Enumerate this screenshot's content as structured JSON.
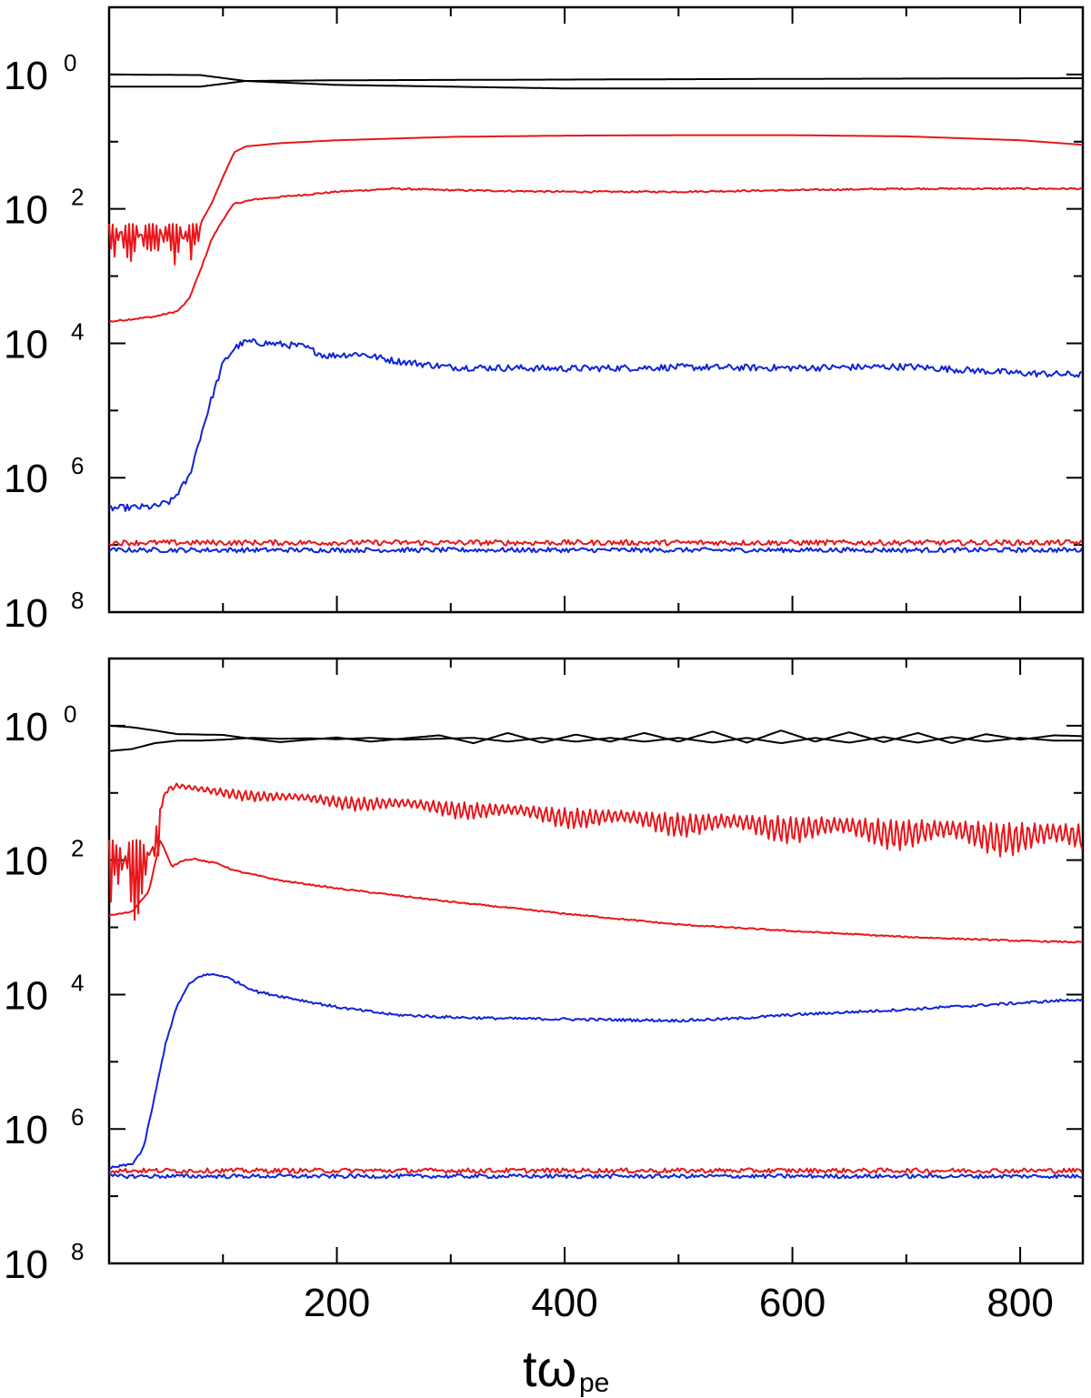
{
  "chart_data": [
    {
      "type": "line",
      "panel": "top",
      "xlabel": "tω",
      "xlabel_subscript": "pe",
      "xlim": [
        0,
        855
      ],
      "xticks": [
        200,
        400,
        600,
        800
      ],
      "xtick_labels": [
        "",
        "",
        "",
        ""
      ],
      "yscale": "log",
      "ylim": [
        1e-08,
        10
      ],
      "yticks": [
        {
          "value": 1,
          "base": "10",
          "exp": "0"
        },
        {
          "value": 0.01,
          "base": "10",
          "exp": "2"
        },
        {
          "value": 0.0001,
          "base": "10",
          "exp": "4"
        },
        {
          "value": 1e-06,
          "base": "10",
          "exp": "6"
        },
        {
          "value": 1e-08,
          "base": "10",
          "exp": "8"
        }
      ],
      "grid": false,
      "colors": {
        "black": "#000000",
        "red": "#e8161b",
        "blue": "#1024d8"
      },
      "series": [
        {
          "color": "black",
          "x": [
            0,
            80,
            120,
            200,
            400,
            600,
            855
          ],
          "y": [
            1.0,
            0.98,
            0.8,
            0.7,
            0.62,
            0.62,
            0.62
          ],
          "noise": 0
        },
        {
          "color": "black",
          "x": [
            0,
            80,
            120,
            200,
            400,
            600,
            855
          ],
          "y": [
            0.66,
            0.66,
            0.8,
            0.82,
            0.84,
            0.86,
            0.88
          ],
          "noise": 0
        },
        {
          "color": "red",
          "x": [
            0,
            30,
            60,
            80,
            90,
            100,
            110,
            120,
            150,
            200,
            300,
            400,
            500,
            600,
            700,
            800,
            855
          ],
          "y": [
            0.006,
            0.006,
            0.006,
            0.006,
            0.012,
            0.03,
            0.07,
            0.085,
            0.095,
            0.105,
            0.118,
            0.123,
            0.125,
            0.125,
            0.12,
            0.105,
            0.09
          ],
          "noise": 0,
          "osc": {
            "x_end": 80,
            "amp": 0.45,
            "period": 7
          }
        },
        {
          "color": "red",
          "x": [
            0,
            40,
            60,
            70,
            80,
            90,
            100,
            110,
            130,
            200,
            250,
            300,
            400,
            500,
            600,
            700,
            800,
            855
          ],
          "y": [
            0.00021,
            0.00025,
            0.0003,
            0.00045,
            0.0012,
            0.0035,
            0.007,
            0.012,
            0.014,
            0.018,
            0.02,
            0.019,
            0.018,
            0.018,
            0.019,
            0.02,
            0.02,
            0.02
          ],
          "noise": 0.012
        },
        {
          "color": "blue",
          "x": [
            0,
            40,
            55,
            70,
            80,
            90,
            100,
            110,
            120,
            140,
            170,
            190,
            220,
            250,
            300,
            400,
            500,
            600,
            700,
            800,
            855
          ],
          "y": [
            3.5e-07,
            3.7e-07,
            4.5e-07,
            1e-06,
            4e-06,
            1.5e-05,
            5e-05,
            8.5e-05,
            0.000105,
            0.0001,
            9e-05,
            6.5e-05,
            7e-05,
            5.5e-05,
            4.4e-05,
            4.2e-05,
            4.4e-05,
            4.3e-05,
            4.5e-05,
            3.6e-05,
            3.4e-05
          ],
          "noise": 0.05
        },
        {
          "color": "blue",
          "x": [
            0,
            855
          ],
          "y": [
            8.4e-08,
            8.4e-08
          ],
          "noise": 0.035
        },
        {
          "color": "red",
          "x": [
            0,
            855
          ],
          "y": [
            1.08e-07,
            1.08e-07
          ],
          "noise": 0.04
        }
      ]
    },
    {
      "type": "line",
      "panel": "bottom",
      "xlabel": "tω",
      "xlabel_subscript": "pe",
      "xlim": [
        0,
        855
      ],
      "xticks": [
        200,
        400,
        600,
        800
      ],
      "xtick_labels": [
        "200",
        "400",
        "600",
        "800"
      ],
      "yscale": "log",
      "ylim": [
        1e-08,
        10
      ],
      "yticks": [
        {
          "value": 1,
          "base": "10",
          "exp": "0"
        },
        {
          "value": 0.01,
          "base": "10",
          "exp": "2"
        },
        {
          "value": 0.0001,
          "base": "10",
          "exp": "4"
        },
        {
          "value": 1e-06,
          "base": "10",
          "exp": "6"
        },
        {
          "value": 1e-08,
          "base": "10",
          "exp": "8"
        }
      ],
      "grid": false,
      "colors": {
        "black": "#000000",
        "red": "#e8161b",
        "blue": "#1024d8"
      },
      "series": [
        {
          "color": "black",
          "x": [
            0,
            20,
            40,
            60,
            80,
            100,
            125,
            150,
            175,
            200,
            230,
            260,
            290,
            320,
            350,
            380,
            410,
            440,
            470,
            500,
            530,
            560,
            590,
            620,
            650,
            680,
            710,
            740,
            770,
            800,
            830,
            855
          ],
          "y": [
            1.0,
            0.95,
            0.85,
            0.75,
            0.74,
            0.73,
            0.64,
            0.57,
            0.62,
            0.67,
            0.58,
            0.65,
            0.72,
            0.55,
            0.78,
            0.56,
            0.74,
            0.58,
            0.78,
            0.58,
            0.82,
            0.56,
            0.85,
            0.58,
            0.8,
            0.57,
            0.78,
            0.55,
            0.75,
            0.62,
            0.72,
            0.7
          ],
          "noise": 0
        },
        {
          "color": "black",
          "x": [
            0,
            20,
            40,
            60,
            80,
            100,
            125,
            150,
            175,
            200,
            230,
            260,
            290,
            320,
            350,
            380,
            410,
            440,
            470,
            500,
            530,
            560,
            590,
            620,
            650,
            680,
            710,
            740,
            770,
            800,
            830,
            855
          ],
          "y": [
            0.42,
            0.45,
            0.55,
            0.6,
            0.6,
            0.62,
            0.66,
            0.64,
            0.65,
            0.63,
            0.66,
            0.62,
            0.64,
            0.66,
            0.58,
            0.66,
            0.58,
            0.66,
            0.58,
            0.66,
            0.56,
            0.66,
            0.55,
            0.66,
            0.56,
            0.68,
            0.56,
            0.68,
            0.58,
            0.66,
            0.6,
            0.6
          ],
          "noise": 0
        },
        {
          "color": "red",
          "x": [
            0,
            30,
            40,
            45,
            50,
            60,
            70,
            90,
            150,
            200,
            300,
            400,
            500,
            600,
            700,
            800,
            855
          ],
          "y": [
            0.02,
            0.02,
            0.03,
            0.06,
            0.12,
            0.14,
            0.13,
            0.12,
            0.1,
            0.09,
            0.075,
            0.06,
            0.05,
            0.045,
            0.04,
            0.036,
            0.034
          ],
          "noise": 0,
          "osc": {
            "x_end": 45,
            "amp": 0.9,
            "period": 6
          },
          "osc2": {
            "x_start": 45,
            "amp_start": 0.12,
            "amp_end": 0.55,
            "period": 5.5
          }
        },
        {
          "color": "red",
          "x": [
            0,
            20,
            35,
            45,
            55,
            65,
            75,
            85,
            95,
            110,
            150,
            200,
            300,
            400,
            500,
            600,
            700,
            800,
            855
          ],
          "y": [
            0.0015,
            0.0017,
            0.0035,
            0.02,
            0.008,
            0.01,
            0.0105,
            0.0095,
            0.009,
            0.007,
            0.005,
            0.0038,
            0.0024,
            0.0016,
            0.0011,
            0.00088,
            0.00072,
            0.00063,
            0.0006
          ],
          "noise": 0.01
        },
        {
          "color": "blue",
          "x": [
            0,
            20,
            30,
            40,
            50,
            60,
            70,
            80,
            90,
            100,
            110,
            130,
            150,
            200,
            250,
            300,
            350,
            400,
            450,
            500,
            550,
            600,
            700,
            800,
            855
          ],
          "y": [
            2.6e-07,
            3e-07,
            5e-07,
            3e-06,
            2e-05,
            7e-05,
            0.00014,
            0.00019,
            0.0002,
            0.00019,
            0.00016,
            0.00011,
            9.5e-05,
            6.5e-05,
            5e-05,
            4.6e-05,
            4.4e-05,
            4.3e-05,
            4.2e-05,
            4.1e-05,
            4.4e-05,
            5e-05,
            6e-05,
            7.5e-05,
            8.5e-05
          ],
          "noise": 0.02
        },
        {
          "color": "blue",
          "x": [
            0,
            855
          ],
          "y": [
            1.98e-07,
            1.98e-07
          ],
          "noise": 0.03
        },
        {
          "color": "red",
          "x": [
            0,
            855
          ],
          "y": [
            2.4e-07,
            2.4e-07
          ],
          "noise": 0.035
        }
      ]
    }
  ]
}
